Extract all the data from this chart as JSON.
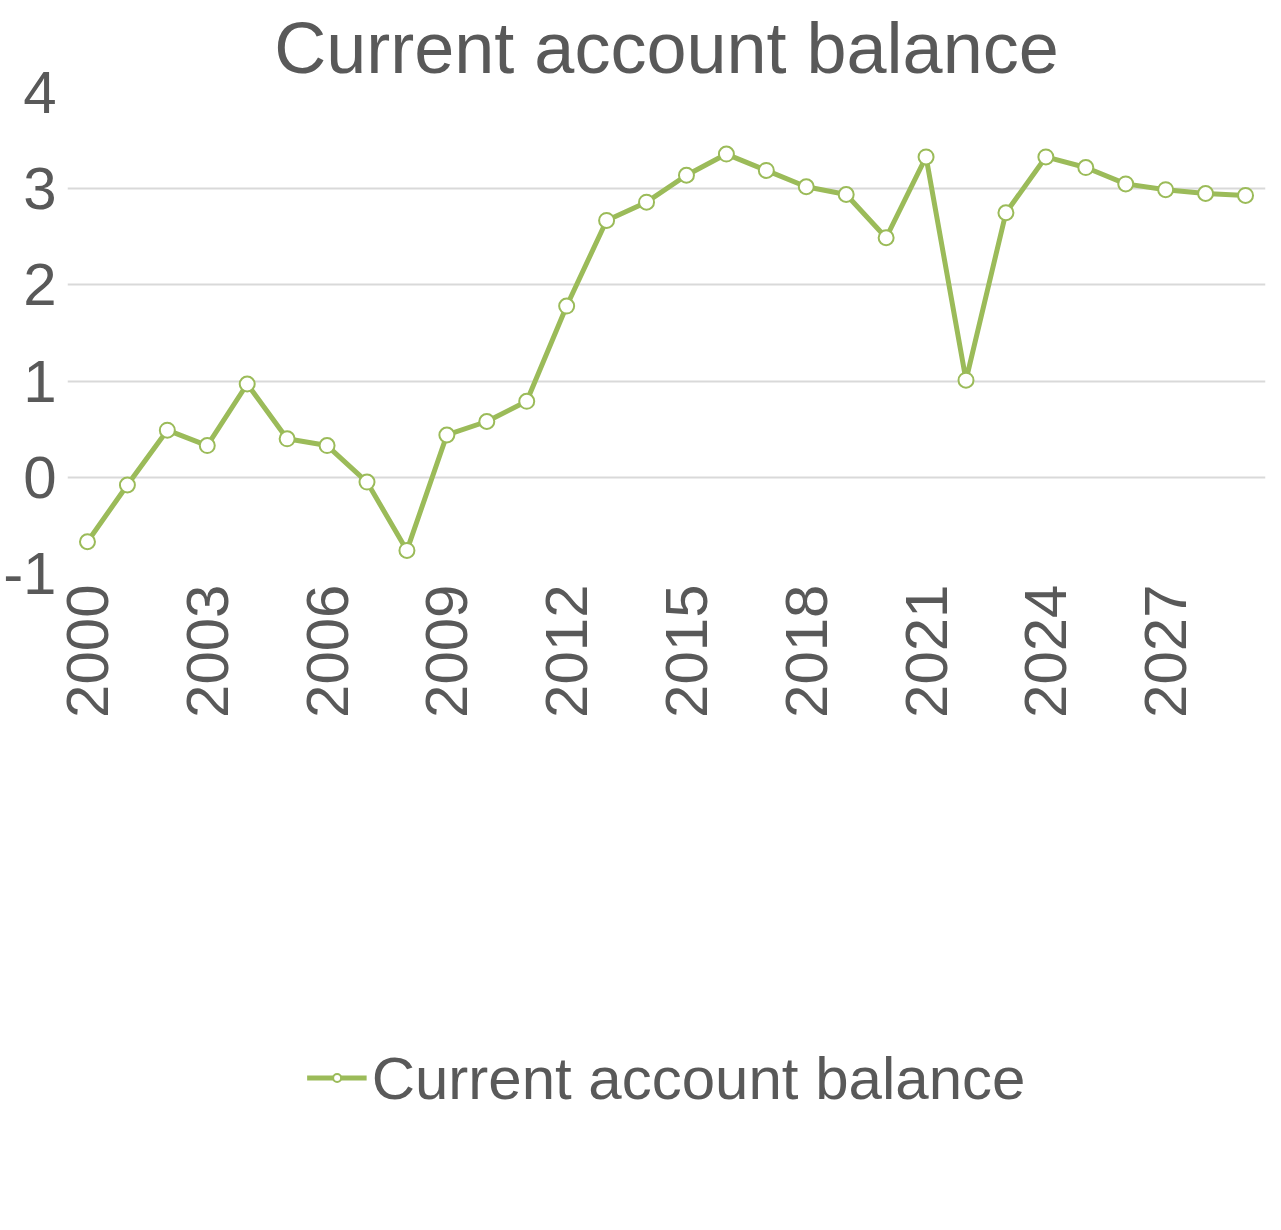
{
  "chart_data": {
    "type": "line",
    "title": "Current account balance",
    "x": [
      2000,
      2001,
      2002,
      2003,
      2004,
      2005,
      2006,
      2007,
      2008,
      2009,
      2010,
      2011,
      2012,
      2013,
      2014,
      2015,
      2016,
      2017,
      2018,
      2019,
      2020,
      2021,
      2022,
      2023,
      2024,
      2025,
      2026,
      2027,
      2028,
      2029
    ],
    "series": [
      {
        "name": "Current account balance",
        "color": "#9bbb59",
        "values": [
          -0.67,
          -0.08,
          0.49,
          0.33,
          0.97,
          0.4,
          0.33,
          -0.05,
          -0.76,
          0.44,
          0.58,
          0.79,
          1.78,
          2.67,
          2.86,
          3.14,
          3.36,
          3.19,
          3.02,
          2.94,
          2.49,
          3.33,
          1.01,
          2.75,
          3.33,
          3.22,
          3.05,
          2.99,
          2.95,
          2.93
        ]
      }
    ],
    "xlim": [
      1999.5,
      2029.5
    ],
    "xticks": [
      2000,
      2003,
      2006,
      2009,
      2012,
      2015,
      2018,
      2021,
      2024,
      2027
    ],
    "ylim": [
      -1,
      4
    ],
    "yticks": [
      -1,
      0,
      1,
      2,
      3,
      4
    ],
    "grid": "y",
    "legend": "bottom",
    "marker": "circle",
    "line_style": "solid"
  }
}
